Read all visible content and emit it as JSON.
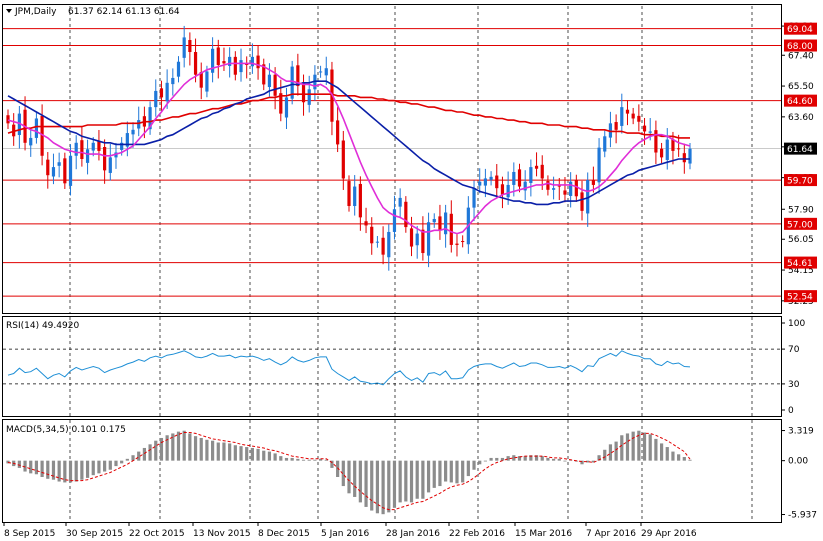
{
  "window": {
    "symbol": "JPM,Daily",
    "ohlc": "61.37 62.14 61.13 61.64"
  },
  "chart_data": [
    {
      "type": "candlestick",
      "title": "JPM,Daily  61.37 62.14 61.13 61.64",
      "ylim": [
        51.5,
        70.5
      ],
      "y_ticks": [
        "69.20",
        "67.40",
        "65.50",
        "63.60",
        "61.75",
        "59.85",
        "57.90",
        "56.05",
        "54.15",
        "52.25"
      ],
      "price_lines": [
        {
          "value": 69.04,
          "label": "69.04"
        },
        {
          "value": 68.0,
          "label": "68.00"
        },
        {
          "value": 64.6,
          "label": "64.60"
        },
        {
          "value": 59.7,
          "label": "59.70"
        },
        {
          "value": 57.0,
          "label": "57.00"
        },
        {
          "value": 54.61,
          "label": "54.61"
        },
        {
          "value": 52.54,
          "label": "52.54"
        }
      ],
      "current_price": {
        "value": 61.64,
        "label": "61.64"
      },
      "x_labels": [
        "8 Sep 2015",
        "30 Sep 2015",
        "22 Oct 2015",
        "13 Nov 2015",
        "8 Dec 2015",
        "5 Jan 2016",
        "28 Jan 2016",
        "22 Feb 2016",
        "15 Mar 2016",
        "7 Apr 2016",
        "29 Apr 2016"
      ],
      "close": [
        63.2,
        62.4,
        63.8,
        62.0,
        62.3,
        63.5,
        61.2,
        60.0,
        60.5,
        60.8,
        59.5,
        61.2,
        62.0,
        61.0,
        61.6,
        62.0,
        61.5,
        60.3,
        61.1,
        61.4,
        62.0,
        62.6,
        62.8,
        63.4,
        63.0,
        64.2,
        65.2,
        64.8,
        65.7,
        66.0,
        67.0,
        68.5,
        67.6,
        66.2,
        65.4,
        66.4,
        67.8,
        66.8,
        66.9,
        67.3,
        66.2,
        67.1,
        66.8,
        67.3,
        66.6,
        65.6,
        66.2,
        64.9,
        63.8,
        64.8,
        66.7,
        65.5,
        64.5,
        65.3,
        66.2,
        66.4,
        66.6,
        63.3,
        61.9,
        59.8,
        58.1,
        59.3,
        57.4,
        56.9,
        55.8,
        55.9,
        55.1,
        56.5,
        57.9,
        58.6,
        56.8,
        55.6,
        56.4,
        55.2,
        57.1,
        57.3,
        56.6,
        57.7,
        55.7,
        55.7,
        55.9,
        58.0,
        59.2,
        59.6,
        59.8,
        59.9,
        59.2,
        58.8,
        59.4,
        60.2,
        59.3,
        59.6,
        60.5,
        60.4,
        59.8,
        59.1,
        59.2,
        59.3,
        58.8,
        59.6,
        58.7,
        57.8,
        59.7,
        59.4,
        61.7,
        62.4,
        63.2,
        62.8,
        64.2,
        63.8,
        63.5,
        63.3,
        62.7,
        62.7,
        61.4,
        61.1,
        62.2,
        61.5,
        61.6,
        60.8,
        61.64
      ],
      "sma_fast": [
        63.4,
        63.3,
        63.2,
        63.0,
        62.8,
        62.7,
        62.5,
        62.3,
        62.0,
        61.8,
        61.6,
        61.5,
        61.4,
        61.4,
        61.3,
        61.3,
        61.3,
        61.2,
        61.2,
        61.3,
        61.4,
        61.6,
        61.8,
        62.2,
        62.6,
        63.0,
        63.5,
        63.9,
        64.4,
        64.8,
        65.2,
        65.6,
        65.9,
        66.1,
        66.3,
        66.5,
        66.6,
        66.7,
        66.8,
        66.9,
        66.9,
        66.9,
        66.9,
        66.9,
        66.8,
        66.7,
        66.5,
        66.3,
        66.0,
        65.8,
        65.8,
        65.7,
        65.6,
        65.6,
        65.5,
        65.6,
        65.4,
        65.0,
        64.3,
        63.5,
        62.6,
        61.7,
        60.8,
        60.0,
        59.3,
        58.6,
        58.0,
        57.7,
        57.5,
        57.4,
        57.2,
        56.9,
        56.7,
        56.5,
        56.5,
        56.6,
        56.6,
        56.7,
        56.5,
        56.4,
        56.5,
        56.9,
        57.3,
        57.7,
        58.1,
        58.4,
        58.6,
        58.8,
        58.9,
        59.0,
        59.1,
        59.2,
        59.3,
        59.4,
        59.4,
        59.5,
        59.4,
        59.4,
        59.4,
        59.4,
        59.3,
        59.1,
        59.0,
        59.1,
        59.3,
        59.6,
        60.0,
        60.4,
        60.9,
        61.3,
        61.7,
        62.0,
        62.2,
        62.4,
        62.5,
        62.5,
        62.4,
        62.2,
        62.0,
        61.9,
        61.8
      ],
      "sma_mid": [
        64.9,
        64.7,
        64.5,
        64.3,
        64.1,
        63.9,
        63.7,
        63.5,
        63.3,
        63.1,
        62.9,
        62.7,
        62.6,
        62.4,
        62.3,
        62.2,
        62.1,
        62.0,
        62.0,
        61.9,
        61.9,
        61.9,
        61.9,
        61.9,
        61.9,
        62.0,
        62.1,
        62.2,
        62.4,
        62.5,
        62.7,
        62.9,
        63.1,
        63.3,
        63.5,
        63.6,
        63.8,
        63.9,
        64.1,
        64.2,
        64.4,
        64.5,
        64.7,
        64.8,
        64.9,
        65.0,
        65.2,
        65.3,
        65.4,
        65.5,
        65.6,
        65.6,
        65.7,
        65.7,
        65.8,
        65.8,
        65.8,
        65.6,
        65.4,
        65.1,
        64.8,
        64.5,
        64.2,
        63.9,
        63.6,
        63.3,
        63.0,
        62.7,
        62.4,
        62.1,
        61.8,
        61.5,
        61.2,
        60.9,
        60.7,
        60.4,
        60.2,
        60.0,
        59.8,
        59.6,
        59.4,
        59.3,
        59.2,
        59.0,
        58.9,
        58.8,
        58.7,
        58.6,
        58.5,
        58.4,
        58.4,
        58.3,
        58.3,
        58.2,
        58.2,
        58.2,
        58.3,
        58.3,
        58.4,
        58.4,
        58.4,
        58.5,
        58.6,
        58.8,
        59.0,
        59.2,
        59.4,
        59.6,
        59.8,
        60.0,
        60.1,
        60.3,
        60.4,
        60.5,
        60.6,
        60.7,
        60.8,
        60.9,
        61.0,
        61.0,
        61.0
      ],
      "sma_slow": [
        62.6,
        62.7,
        62.8,
        62.9,
        62.9,
        63.0,
        63.0,
        63.0,
        63.0,
        63.0,
        63.0,
        63.0,
        63.0,
        63.0,
        63.1,
        63.1,
        63.1,
        63.1,
        63.1,
        63.1,
        63.2,
        63.2,
        63.2,
        63.2,
        63.3,
        63.3,
        63.4,
        63.4,
        63.5,
        63.6,
        63.6,
        63.7,
        63.8,
        63.8,
        63.9,
        64.0,
        64.1,
        64.1,
        64.2,
        64.3,
        64.4,
        64.4,
        64.5,
        64.6,
        64.6,
        64.7,
        64.8,
        64.8,
        64.9,
        64.9,
        65.0,
        65.0,
        65.0,
        65.0,
        65.0,
        65.0,
        65.0,
        65.0,
        64.9,
        64.9,
        64.9,
        64.9,
        64.8,
        64.8,
        64.8,
        64.7,
        64.7,
        64.6,
        64.6,
        64.5,
        64.5,
        64.4,
        64.4,
        64.3,
        64.2,
        64.2,
        64.1,
        64.0,
        64.0,
        63.9,
        63.9,
        63.8,
        63.7,
        63.7,
        63.6,
        63.6,
        63.5,
        63.5,
        63.4,
        63.4,
        63.3,
        63.3,
        63.2,
        63.2,
        63.2,
        63.1,
        63.1,
        63.1,
        63.0,
        63.0,
        63.0,
        62.9,
        62.9,
        62.8,
        62.8,
        62.8,
        62.7,
        62.7,
        62.7,
        62.6,
        62.6,
        62.6,
        62.5,
        62.5,
        62.5,
        62.4,
        62.4,
        62.4,
        62.3,
        62.3,
        62.3
      ]
    },
    {
      "type": "line",
      "title": "RSI(14) 49.4920",
      "ylim": [
        0,
        100
      ],
      "y_ticks": [
        "100",
        "70",
        "30",
        "0"
      ],
      "levels": [
        70,
        30
      ],
      "values": [
        40,
        42,
        48,
        43,
        44,
        48,
        42,
        36,
        40,
        42,
        38,
        45,
        49,
        46,
        48,
        50,
        48,
        43,
        46,
        48,
        50,
        53,
        55,
        58,
        56,
        60,
        62,
        60,
        63,
        64,
        66,
        68,
        65,
        61,
        60,
        62,
        65,
        62,
        62,
        63,
        60,
        62,
        61,
        62,
        60,
        57,
        59,
        55,
        52,
        55,
        61,
        57,
        55,
        57,
        60,
        61,
        61,
        47,
        42,
        38,
        34,
        38,
        33,
        32,
        30,
        31,
        29,
        36,
        42,
        45,
        38,
        34,
        37,
        32,
        42,
        43,
        40,
        45,
        36,
        36,
        37,
        46,
        50,
        52,
        53,
        53,
        50,
        48,
        51,
        54,
        50,
        51,
        54,
        54,
        52,
        49,
        49,
        50,
        48,
        51,
        48,
        44,
        51,
        50,
        59,
        62,
        65,
        62,
        68,
        65,
        63,
        62,
        59,
        59,
        53,
        51,
        56,
        53,
        54,
        50,
        49.49
      ]
    },
    {
      "type": "bar",
      "title": "MACD(5,34,5) 0.101 0.175",
      "ylim": [
        -6.1,
        3.6
      ],
      "y_ticks": [
        "3.319",
        "0.00",
        "-5.937"
      ],
      "histogram": [
        -0.3,
        -0.6,
        -0.8,
        -1.2,
        -1.4,
        -1.5,
        -1.8,
        -2.0,
        -2.1,
        -2.3,
        -2.4,
        -2.4,
        -2.3,
        -2.1,
        -1.9,
        -1.6,
        -1.4,
        -1.2,
        -1.0,
        -0.6,
        -0.3,
        0.2,
        0.6,
        1.0,
        1.4,
        1.8,
        2.2,
        2.5,
        2.8,
        3.0,
        3.2,
        3.3,
        3.0,
        2.7,
        2.5,
        2.3,
        2.2,
        2.0,
        2.0,
        1.9,
        1.7,
        1.6,
        1.5,
        1.4,
        1.3,
        1.1,
        1.0,
        0.8,
        0.5,
        0.3,
        0.3,
        0.2,
        0.1,
        0.1,
        0.1,
        0.2,
        0.1,
        -0.8,
        -1.8,
        -2.8,
        -3.6,
        -4.0,
        -4.6,
        -5.1,
        -5.5,
        -5.8,
        -5.9,
        -5.7,
        -5.2,
        -4.6,
        -4.5,
        -4.6,
        -4.2,
        -4.2,
        -3.5,
        -3.0,
        -2.8,
        -2.3,
        -2.4,
        -2.5,
        -2.4,
        -1.7,
        -1.0,
        -0.4,
        0.0,
        0.3,
        0.3,
        0.3,
        0.5,
        0.6,
        0.5,
        0.5,
        0.6,
        0.6,
        0.5,
        0.3,
        0.2,
        0.2,
        0.0,
        0.1,
        -0.1,
        -0.4,
        -0.2,
        -0.2,
        0.6,
        1.2,
        1.8,
        2.1,
        2.8,
        3.0,
        3.2,
        3.3,
        3.1,
        2.9,
        2.4,
        1.9,
        1.5,
        1.0,
        0.7,
        0.4,
        0.1
      ],
      "signal": [
        -0.2,
        -0.3,
        -0.5,
        -0.7,
        -0.9,
        -1.1,
        -1.3,
        -1.5,
        -1.7,
        -1.9,
        -2.1,
        -2.2,
        -2.2,
        -2.2,
        -2.1,
        -1.9,
        -1.7,
        -1.5,
        -1.3,
        -1.0,
        -0.7,
        -0.4,
        0.0,
        0.4,
        0.8,
        1.2,
        1.6,
        2.0,
        2.3,
        2.6,
        2.9,
        3.1,
        3.1,
        3.0,
        2.8,
        2.6,
        2.4,
        2.3,
        2.2,
        2.1,
        2.0,
        1.8,
        1.7,
        1.6,
        1.5,
        1.4,
        1.2,
        1.1,
        0.9,
        0.7,
        0.5,
        0.4,
        0.3,
        0.2,
        0.2,
        0.2,
        0.2,
        -0.2,
        -0.8,
        -1.5,
        -2.2,
        -2.8,
        -3.4,
        -3.9,
        -4.4,
        -4.8,
        -5.2,
        -5.4,
        -5.4,
        -5.2,
        -5.0,
        -4.8,
        -4.6,
        -4.5,
        -4.2,
        -3.9,
        -3.6,
        -3.2,
        -2.9,
        -2.7,
        -2.6,
        -2.3,
        -1.9,
        -1.4,
        -0.9,
        -0.5,
        -0.2,
        0.0,
        0.2,
        0.3,
        0.4,
        0.5,
        0.5,
        0.5,
        0.5,
        0.4,
        0.3,
        0.3,
        0.2,
        0.1,
        0.0,
        -0.1,
        -0.1,
        -0.2,
        0.1,
        0.4,
        0.8,
        1.2,
        1.7,
        2.1,
        2.5,
        2.8,
        3.0,
        3.0,
        2.8,
        2.5,
        2.2,
        1.8,
        1.4,
        1.0,
        0.175
      ]
    }
  ]
}
